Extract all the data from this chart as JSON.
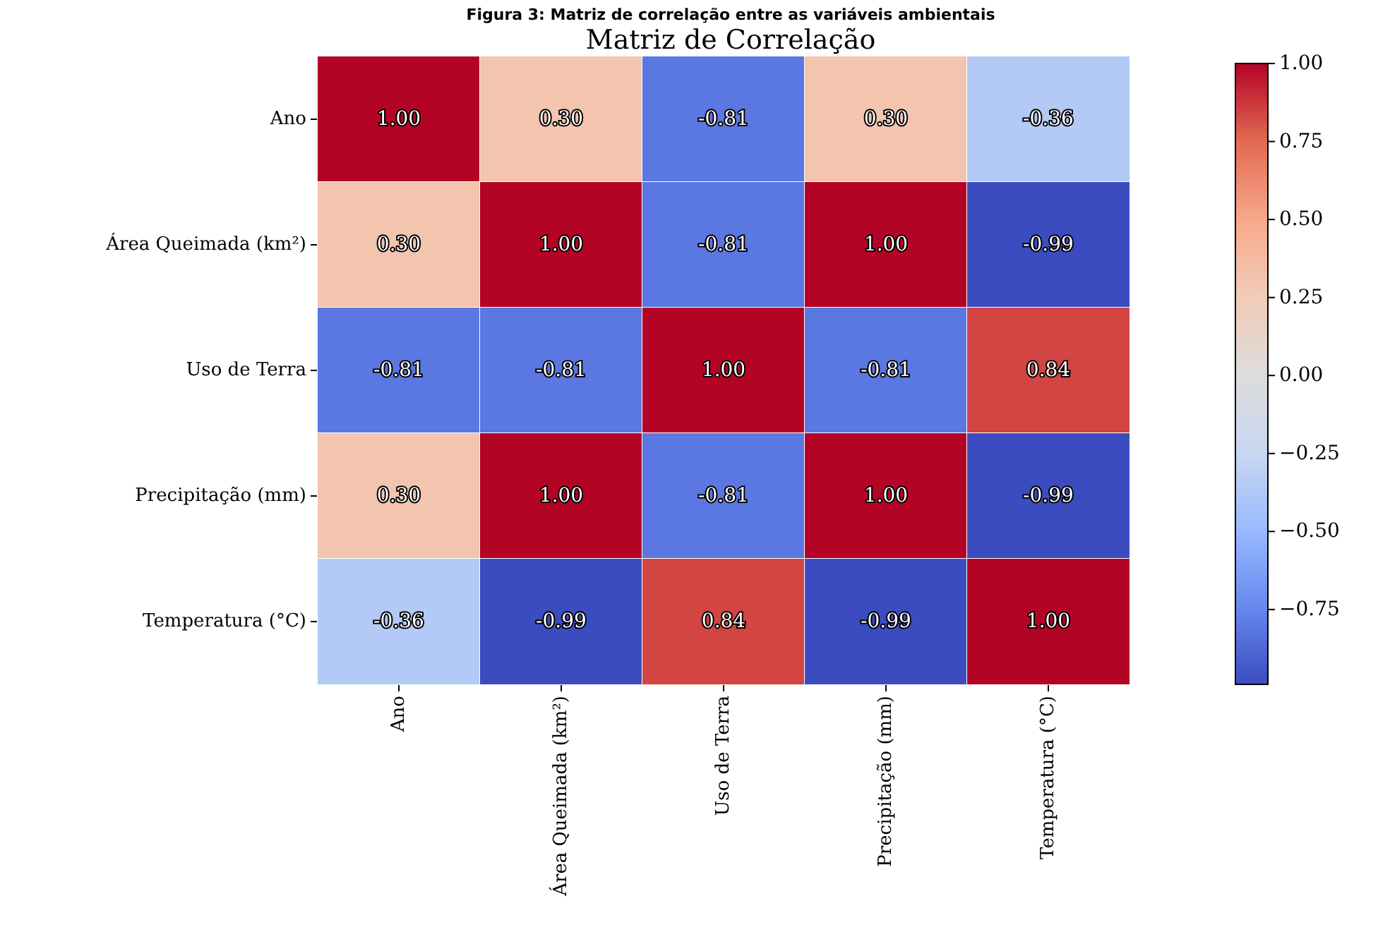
{
  "chart_data": {
    "type": "heatmap",
    "title": "Matriz de Correlação",
    "annotations": [
      "Figura 3: Matriz de correlação entre as variáveis ambientais"
    ],
    "categories": [
      "Ano",
      "Área Queimada (km²)",
      "Uso de Terra",
      "Precipitação (mm)",
      "Temperatura (°C)"
    ],
    "y_categories": [
      "Ano",
      "Área Queimada (km²)",
      "Uso de Terra",
      "Precipitação (mm)",
      "Temperatura (°C)"
    ],
    "cells": [
      [
        1.0,
        0.3,
        -0.81,
        0.3,
        -0.36
      ],
      [
        0.3,
        1.0,
        -0.81,
        1.0,
        -0.99
      ],
      [
        -0.81,
        -0.81,
        1.0,
        -0.81,
        0.84
      ],
      [
        0.3,
        1.0,
        -0.81,
        1.0,
        -0.99
      ],
      [
        -0.36,
        -0.99,
        0.84,
        -0.99,
        1.0
      ]
    ],
    "cell_labels": [
      [
        "1.00",
        "0.30",
        "-0.81",
        "0.30",
        "-0.36"
      ],
      [
        "0.30",
        "1.00",
        "-0.81",
        "1.00",
        "-0.99"
      ],
      [
        "-0.81",
        "-0.81",
        "1.00",
        "-0.81",
        "0.84"
      ],
      [
        "0.30",
        "1.00",
        "-0.81",
        "1.00",
        "-0.99"
      ],
      [
        "-0.36",
        "-0.99",
        "0.84",
        "-0.99",
        "1.00"
      ]
    ],
    "clim": [
      -0.99,
      1.0
    ],
    "cticks": [
      {
        "value": -0.75,
        "label": "−0.75"
      },
      {
        "value": -0.5,
        "label": "−0.50"
      },
      {
        "value": -0.25,
        "label": "−0.25"
      },
      {
        "value": 0,
        "label": "0.00"
      },
      {
        "value": 0.25,
        "label": "0.25"
      },
      {
        "value": 0.5,
        "label": "0.50"
      },
      {
        "value": 0.75,
        "label": "0.75"
      },
      {
        "value": 1,
        "label": "1.00"
      }
    ]
  }
}
